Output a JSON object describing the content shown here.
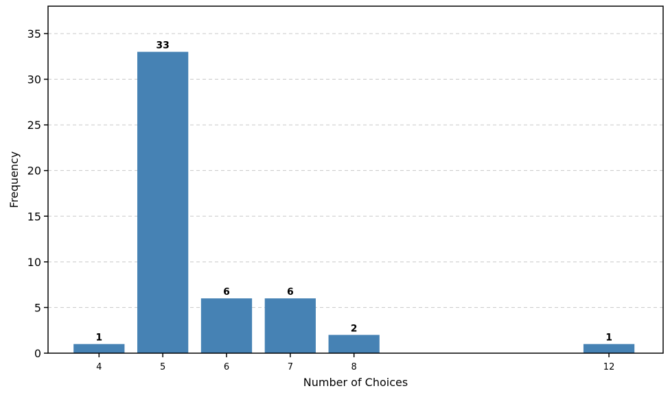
{
  "chart_data": {
    "type": "bar",
    "title": "",
    "xlabel": "Number of Choices",
    "ylabel": "Frequency",
    "x": [
      4,
      5,
      6,
      7,
      8,
      12
    ],
    "categories": [
      "4",
      "5",
      "6",
      "7",
      "8",
      "12"
    ],
    "values": [
      1,
      33,
      6,
      6,
      2,
      1
    ],
    "xlim": [
      3.2,
      12.85
    ],
    "ylim": [
      0,
      38
    ],
    "yticks": [
      0,
      5,
      10,
      15,
      20,
      25,
      30,
      35
    ],
    "grid": "y, dashed",
    "legend": "none",
    "bar_color": "#4682b4",
    "show_value_labels": true
  }
}
